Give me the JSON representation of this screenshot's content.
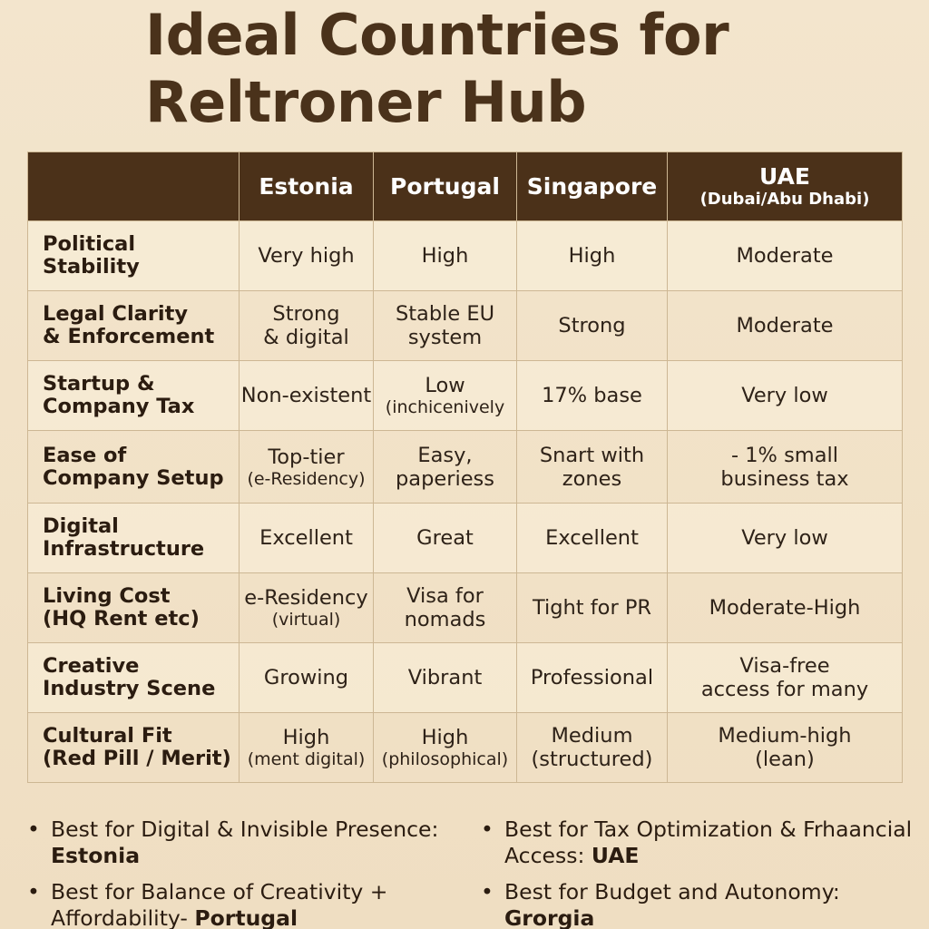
{
  "title": {
    "line1": "Ideal Countries for",
    "line2": "Reltroner Hub"
  },
  "table": {
    "columns": [
      {
        "name": "Estonia",
        "sub": ""
      },
      {
        "name": "Portugal",
        "sub": ""
      },
      {
        "name": "Singapore",
        "sub": ""
      },
      {
        "name": "UAE",
        "sub": "(Dubai/Abu Dhabi)"
      }
    ],
    "rows": [
      {
        "label": [
          "Political",
          "Stability"
        ],
        "cells": [
          {
            "l1": "Very high",
            "l2": ""
          },
          {
            "l1": "High",
            "l2": ""
          },
          {
            "l1": "High",
            "l2": ""
          },
          {
            "l1": "Moderate",
            "l2": ""
          }
        ]
      },
      {
        "label": [
          "Legal Clarity",
          "& Enforcement"
        ],
        "cells": [
          {
            "l1": "Strong",
            "l2": "& digital"
          },
          {
            "l1": "Stable EU",
            "l2": "system"
          },
          {
            "l1": "Strong",
            "l2": ""
          },
          {
            "l1": "Moderate",
            "l2": ""
          }
        ]
      },
      {
        "label": [
          "Startup &",
          "Company Tax"
        ],
        "cells": [
          {
            "l1": "Non-existent",
            "l2": ""
          },
          {
            "l1": "Low",
            "l2": "(inchicenively"
          },
          {
            "l1": "17% base",
            "l2": ""
          },
          {
            "l1": "Very low",
            "l2": ""
          }
        ]
      },
      {
        "label": [
          "Ease of",
          "Company Setup"
        ],
        "cells": [
          {
            "l1": "Top-tier",
            "l2": "(e-Residency)"
          },
          {
            "l1": "Easy,",
            "l2": "paperiess"
          },
          {
            "l1": "Snart with",
            "l2": "zones"
          },
          {
            "l1": "- 1% small",
            "l2": "business tax"
          }
        ]
      },
      {
        "label": [
          "Digital",
          "Infrastructure"
        ],
        "cells": [
          {
            "l1": "Excellent",
            "l2": ""
          },
          {
            "l1": "Great",
            "l2": ""
          },
          {
            "l1": "Excellent",
            "l2": ""
          },
          {
            "l1": "Very low",
            "l2": ""
          }
        ]
      },
      {
        "label": [
          "Living Cost",
          "(HQ Rent etc)"
        ],
        "cells": [
          {
            "l1": "e-Residency",
            "l2": "(virtual)"
          },
          {
            "l1": "Visa for",
            "l2": "nomads"
          },
          {
            "l1": "Tight for PR",
            "l2": ""
          },
          {
            "l1": "Moderate-High",
            "l2": ""
          }
        ]
      },
      {
        "label": [
          "Creative",
          "Industry Scene"
        ],
        "cells": [
          {
            "l1": "Growing",
            "l2": ""
          },
          {
            "l1": "Vibrant",
            "l2": ""
          },
          {
            "l1": "Professional",
            "l2": ""
          },
          {
            "l1": "Visa-free",
            "l2": "access for many"
          }
        ]
      },
      {
        "label": [
          "Cultural Fit",
          "(Red Pill / Merit)"
        ],
        "cells": [
          {
            "l1": "High",
            "l2": "(ment digital)"
          },
          {
            "l1": "High",
            "l2": "(philosophical)"
          },
          {
            "l1": "Medium",
            "l2": "(structured)"
          },
          {
            "l1": "Medium-high",
            "l2": "(lean)"
          }
        ]
      }
    ]
  },
  "bullets": {
    "marker": "•",
    "left": [
      {
        "label": "Best for Digital & Invisible Presence:",
        "value": "Estonia"
      },
      {
        "label": "Best for Balance of Creativity + Affordability- ",
        "value": "Portugal"
      }
    ],
    "right": [
      {
        "label": "Best for Tax Optimization & Frhaancial Access: ",
        "value": "UAE"
      },
      {
        "label": "Best for Budget and Autonomy:",
        "value": "Grorgia"
      }
    ]
  }
}
